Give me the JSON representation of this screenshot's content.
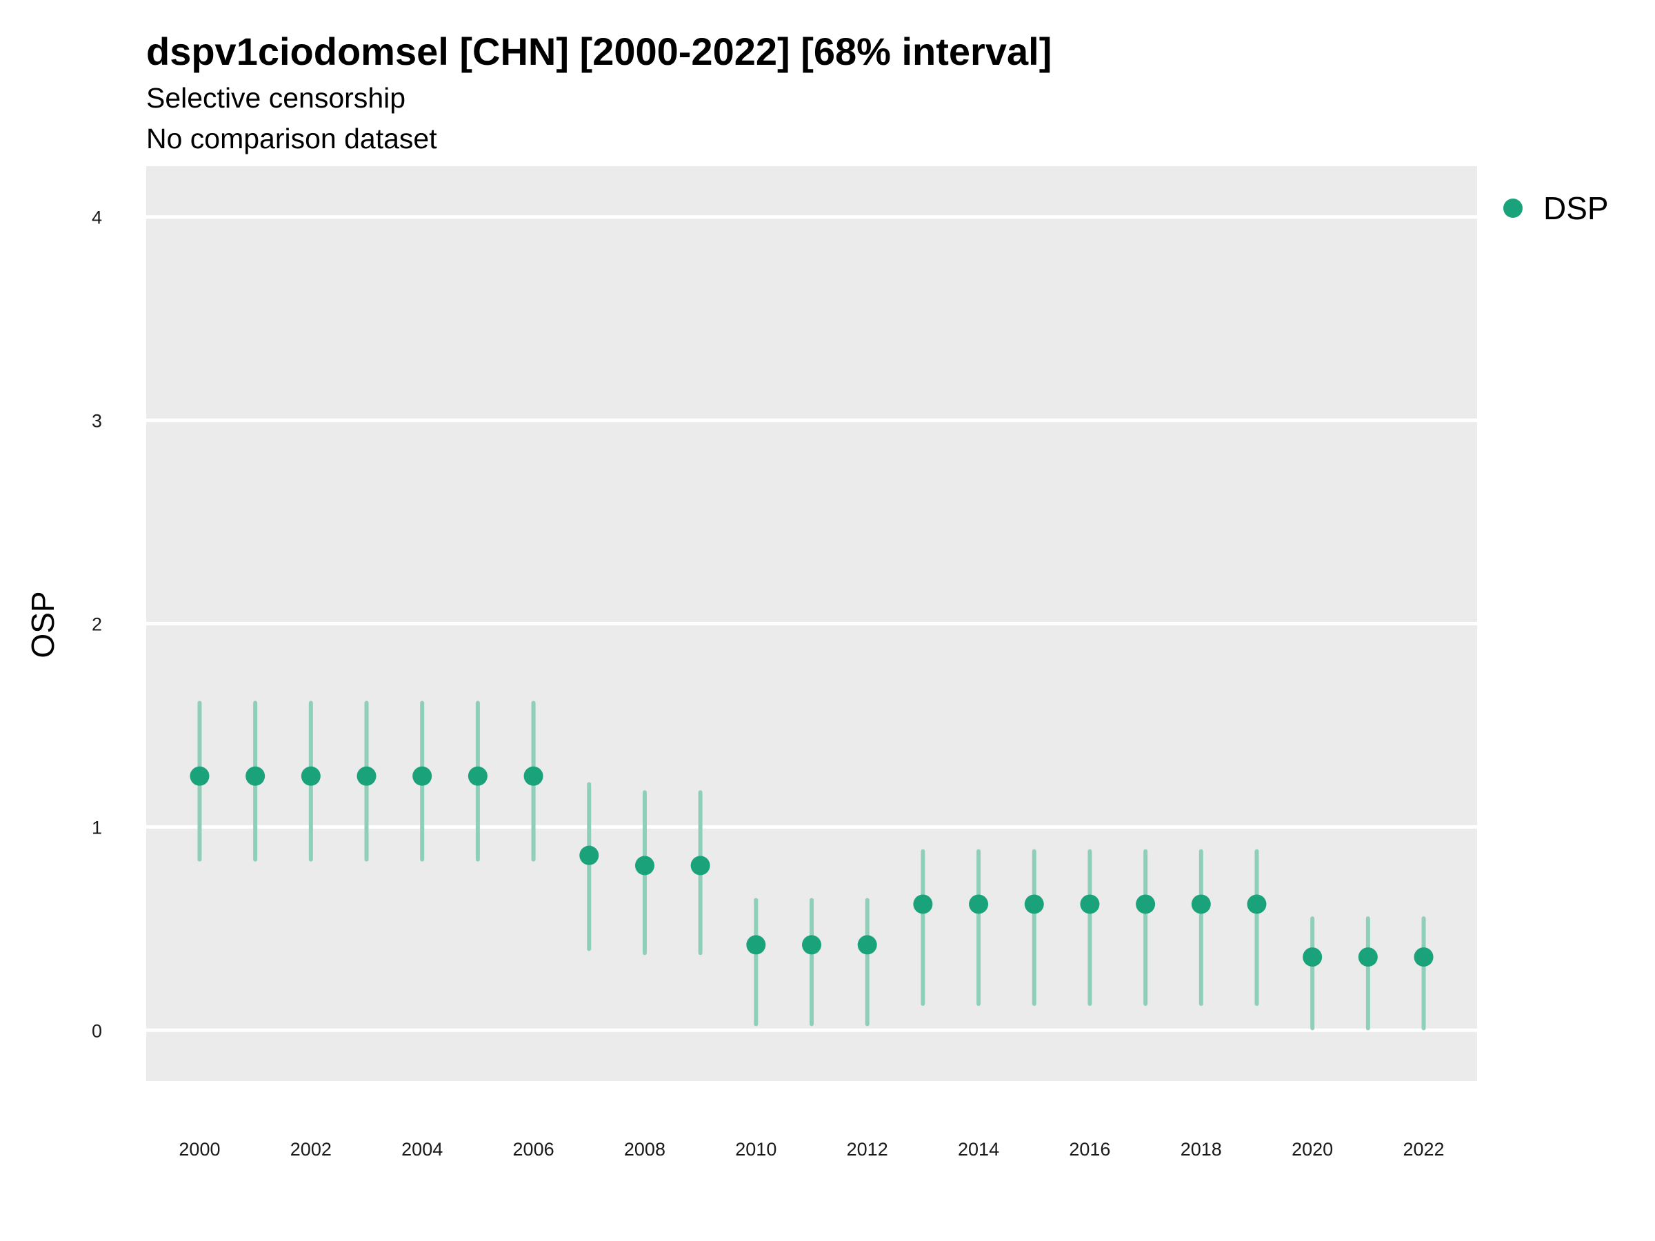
{
  "chart_data": {
    "type": "scatter",
    "title": "dspv1ciodomsel [CHN] [2000-2022] [68% interval]",
    "subtitle_lines": [
      "Selective censorship",
      "No comparison dataset"
    ],
    "xlabel": "",
    "ylabel": "OSP",
    "xlim": [
      1999.04,
      2022.96
    ],
    "ylim": [
      -0.25,
      4.25
    ],
    "y_ticks": [
      0,
      1,
      2,
      3,
      4
    ],
    "x_ticks": [
      2000,
      2002,
      2004,
      2006,
      2008,
      2010,
      2012,
      2014,
      2016,
      2018,
      2020,
      2022
    ],
    "grid": true,
    "legend_position": "right-top",
    "colors": {
      "point": "#1aa37a",
      "interval": "#8fcfb9",
      "panel": "#ebebeb",
      "gridline": "#ffffff"
    },
    "series": [
      {
        "name": "DSP",
        "x": [
          2000,
          2001,
          2002,
          2003,
          2004,
          2005,
          2006,
          2007,
          2008,
          2009,
          2010,
          2011,
          2012,
          2013,
          2014,
          2015,
          2016,
          2017,
          2018,
          2019,
          2020,
          2021,
          2022
        ],
        "y": [
          1.25,
          1.25,
          1.25,
          1.25,
          1.25,
          1.25,
          1.25,
          0.86,
          0.81,
          0.81,
          0.42,
          0.42,
          0.42,
          0.62,
          0.62,
          0.62,
          0.62,
          0.62,
          0.62,
          0.62,
          0.36,
          0.36,
          0.36
        ],
        "lower": [
          0.84,
          0.84,
          0.84,
          0.84,
          0.84,
          0.84,
          0.84,
          0.4,
          0.38,
          0.38,
          0.03,
          0.03,
          0.03,
          0.13,
          0.13,
          0.13,
          0.13,
          0.13,
          0.13,
          0.13,
          0.01,
          0.01,
          0.01
        ],
        "upper": [
          1.61,
          1.61,
          1.61,
          1.61,
          1.61,
          1.61,
          1.61,
          1.21,
          1.17,
          1.17,
          0.64,
          0.64,
          0.64,
          0.88,
          0.88,
          0.88,
          0.88,
          0.88,
          0.88,
          0.88,
          0.55,
          0.55,
          0.55
        ]
      }
    ]
  }
}
